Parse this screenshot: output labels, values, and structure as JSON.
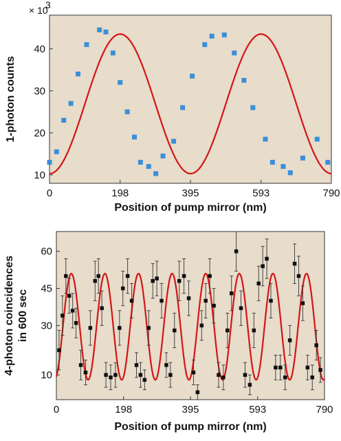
{
  "chart_data": [
    {
      "type": "scatter",
      "xlabel": "Position of pump mirror (nm)",
      "ylabel": "1-photon counts",
      "y_multiplier": "× 10",
      "y_multiplier_exp": "3",
      "xlim": [
        0,
        790
      ],
      "ylim": [
        8,
        48
      ],
      "x_ticks": [
        "0",
        "198",
        "395",
        "593",
        "790"
      ],
      "x_tick_values": [
        0,
        198,
        395,
        593,
        790
      ],
      "y_ticks": [
        "10",
        "20",
        "30",
        "40"
      ],
      "y_tick_values": [
        10,
        20,
        30,
        40
      ],
      "background": "#e8dccb",
      "fit_color": "#d41414",
      "marker_color": "#3a8fd8",
      "fit": {
        "offset": 26.9,
        "amplitude": 16.6,
        "period": 395,
        "peak_x": 198
      },
      "series": [
        {
          "x": [
            0,
            20,
            40,
            60,
            80,
            104,
            140,
            158,
            178,
            198,
            218,
            238,
            255,
            278,
            298,
            318,
            348,
            373,
            400,
            435,
            455,
            490,
            518,
            545,
            570,
            605,
            625,
            655,
            675,
            710,
            750,
            780
          ],
          "y": [
            13,
            15.5,
            23,
            27,
            34,
            41,
            44.5,
            44,
            39,
            32,
            25,
            19,
            13,
            12,
            10.3,
            14.5,
            18,
            26,
            33.5,
            41,
            43,
            43.3,
            39,
            32.5,
            26,
            18.5,
            13,
            12,
            10.5,
            14,
            18.5,
            13
          ]
        }
      ]
    },
    {
      "type": "scatter",
      "xlabel": "Position of pump mirror (nm)",
      "ylabel_line1": "4-photon coincidences",
      "ylabel_line2": "in 600 sec",
      "xlim": [
        0,
        790
      ],
      "ylim": [
        0,
        68
      ],
      "x_ticks": [
        "0",
        "198",
        "395",
        "593",
        "790"
      ],
      "x_tick_values": [
        0,
        198,
        395,
        593,
        790
      ],
      "y_ticks": [
        "10",
        "30",
        "45",
        "60"
      ],
      "y_tick_values": [
        10,
        30,
        45,
        60
      ],
      "background": "#e8dccb",
      "fit_color": "#d41414",
      "marker_color": "#111111",
      "fit": {
        "offset": 29.5,
        "amplitude": 21.5,
        "period": 99,
        "peak_x": 44
      },
      "series": [
        {
          "x": [
            8,
            18,
            28,
            38,
            48,
            58,
            72,
            86,
            100,
            114,
            124,
            134,
            146,
            160,
            174,
            186,
            196,
            210,
            222,
            236,
            248,
            260,
            272,
            284,
            296,
            310,
            324,
            336,
            348,
            362,
            376,
            390,
            404,
            416,
            428,
            440,
            452,
            464,
            478,
            492,
            504,
            516,
            530,
            544,
            556,
            570,
            582,
            596,
            608,
            620,
            632,
            646,
            660,
            674,
            688,
            702,
            714,
            726,
            740,
            754,
            766,
            778
          ],
          "y": [
            20,
            34,
            50,
            42,
            36,
            31,
            14,
            11,
            29,
            48,
            50,
            37,
            10,
            9,
            10,
            29,
            45,
            50,
            40,
            14,
            10,
            8,
            29,
            48,
            49,
            40,
            14,
            10,
            28,
            48,
            50,
            41,
            11,
            3,
            30,
            40,
            50,
            38,
            10,
            9,
            28,
            43,
            60,
            37,
            10,
            6,
            28,
            47,
            54,
            57,
            40,
            13,
            13,
            9,
            24,
            55,
            50,
            39,
            13,
            9,
            22,
            12
          ],
          "err": [
            8,
            8,
            7,
            7,
            7,
            6,
            6,
            5,
            7,
            8,
            7,
            7,
            5,
            5,
            5,
            7,
            7,
            7,
            7,
            5,
            5,
            4,
            7,
            7,
            7,
            7,
            5,
            5,
            7,
            8,
            7,
            7,
            5,
            3,
            6,
            7,
            7,
            7,
            5,
            5,
            7,
            7,
            8,
            7,
            5,
            4,
            7,
            7,
            8,
            8,
            7,
            5,
            5,
            5,
            6,
            8,
            8,
            7,
            5,
            5,
            6,
            5
          ]
        }
      ]
    }
  ]
}
